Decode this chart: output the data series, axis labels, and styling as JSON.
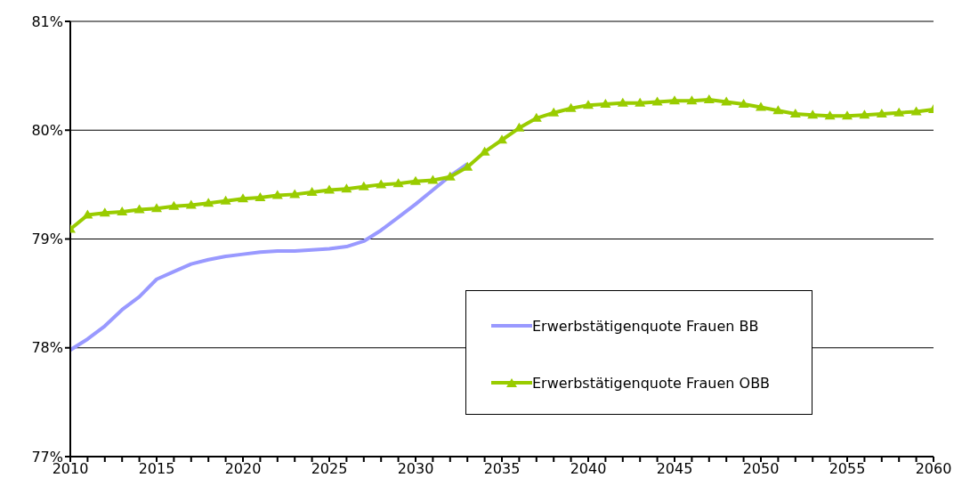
{
  "chart_data": {
    "type": "line",
    "x": [
      2010,
      2011,
      2012,
      2013,
      2014,
      2015,
      2016,
      2017,
      2018,
      2019,
      2020,
      2021,
      2022,
      2023,
      2024,
      2025,
      2026,
      2027,
      2028,
      2029,
      2030,
      2031,
      2032,
      2033,
      2034,
      2035,
      2036,
      2037,
      2038,
      2039,
      2040,
      2041,
      2042,
      2043,
      2044,
      2045,
      2046,
      2047,
      2048,
      2049,
      2050,
      2051,
      2052,
      2053,
      2054,
      2055,
      2056,
      2057,
      2058,
      2059,
      2060
    ],
    "series": [
      {
        "name": "Erwerbstätigenquote Frauen BB",
        "color": "#9999ff",
        "marker": "none",
        "values": [
          77.98,
          78.08,
          78.2,
          78.35,
          78.47,
          78.63,
          78.7,
          78.77,
          78.81,
          78.84,
          78.86,
          78.88,
          78.89,
          78.89,
          78.9,
          78.91,
          78.93,
          78.98,
          79.08,
          79.2,
          79.32,
          79.45,
          79.58,
          79.69,
          null,
          null,
          null,
          null,
          null,
          null,
          null,
          null,
          null,
          null,
          null,
          null,
          null,
          null,
          null,
          null,
          null,
          null,
          null,
          null,
          null,
          null,
          null,
          null,
          null,
          null,
          null
        ]
      },
      {
        "name": "Erwerbstätigenquote Frauen OBB",
        "color": "#99cc00",
        "marker": "triangle",
        "values": [
          79.09,
          79.22,
          79.24,
          79.25,
          79.27,
          79.28,
          79.3,
          79.31,
          79.33,
          79.35,
          79.37,
          79.38,
          79.4,
          79.41,
          79.43,
          79.45,
          79.46,
          79.48,
          79.5,
          79.51,
          79.53,
          79.54,
          79.57,
          79.66,
          79.8,
          79.91,
          80.02,
          80.11,
          80.16,
          80.2,
          80.23,
          80.24,
          80.25,
          80.25,
          80.26,
          80.27,
          80.27,
          80.28,
          80.26,
          80.24,
          80.21,
          80.18,
          80.15,
          80.14,
          80.13,
          80.13,
          80.14,
          80.15,
          80.16,
          80.17,
          80.19
        ]
      }
    ],
    "xlim": [
      2010,
      2060
    ],
    "xticks": [
      2010,
      {
        "value": 2011,
        "label": null
      },
      {
        "value": 2012,
        "label": null
      },
      {
        "value": 2013,
        "label": null
      },
      {
        "value": 2014,
        "label": null
      },
      2015,
      {
        "value": 2016,
        "label": null
      },
      {
        "value": 2017,
        "label": null
      },
      {
        "value": 2018,
        "label": null
      },
      {
        "value": 2019,
        "label": null
      },
      2020,
      {
        "value": 2021,
        "label": null
      },
      {
        "value": 2022,
        "label": null
      },
      {
        "value": 2023,
        "label": null
      },
      {
        "value": 2024,
        "label": null
      },
      2025,
      {
        "value": 2026,
        "label": null
      },
      {
        "value": 2027,
        "label": null
      },
      {
        "value": 2028,
        "label": null
      },
      {
        "value": 2029,
        "label": null
      },
      2030,
      {
        "value": 2031,
        "label": null
      },
      {
        "value": 2032,
        "label": null
      },
      {
        "value": 2033,
        "label": null
      },
      {
        "value": 2034,
        "label": null
      },
      2035,
      {
        "value": 2036,
        "label": null
      },
      {
        "value": 2037,
        "label": null
      },
      {
        "value": 2038,
        "label": null
      },
      {
        "value": 2039,
        "label": null
      },
      2040,
      {
        "value": 2041,
        "label": null
      },
      {
        "value": 2042,
        "label": null
      },
      {
        "value": 2043,
        "label": null
      },
      {
        "value": 2044,
        "label": null
      },
      2045,
      {
        "value": 2046,
        "label": null
      },
      {
        "value": 2047,
        "label": null
      },
      {
        "value": 2048,
        "label": null
      },
      {
        "value": 2049,
        "label": null
      },
      2050,
      {
        "value": 2051,
        "label": null
      },
      {
        "value": 2052,
        "label": null
      },
      {
        "value": 2053,
        "label": null
      },
      {
        "value": 2054,
        "label": null
      },
      2055,
      {
        "value": 2056,
        "label": null
      },
      {
        "value": 2057,
        "label": null
      },
      {
        "value": 2058,
        "label": null
      },
      {
        "value": 2059,
        "label": null
      },
      2060
    ],
    "ylim": [
      77,
      81
    ],
    "yticks": [
      {
        "value": 77,
        "label": "77%"
      },
      {
        "value": 78,
        "label": "78%"
      },
      {
        "value": 79,
        "label": "79%"
      },
      {
        "value": 80,
        "label": "80%"
      },
      {
        "value": 81,
        "label": "81%"
      }
    ],
    "grid": "y",
    "legend": "right"
  }
}
